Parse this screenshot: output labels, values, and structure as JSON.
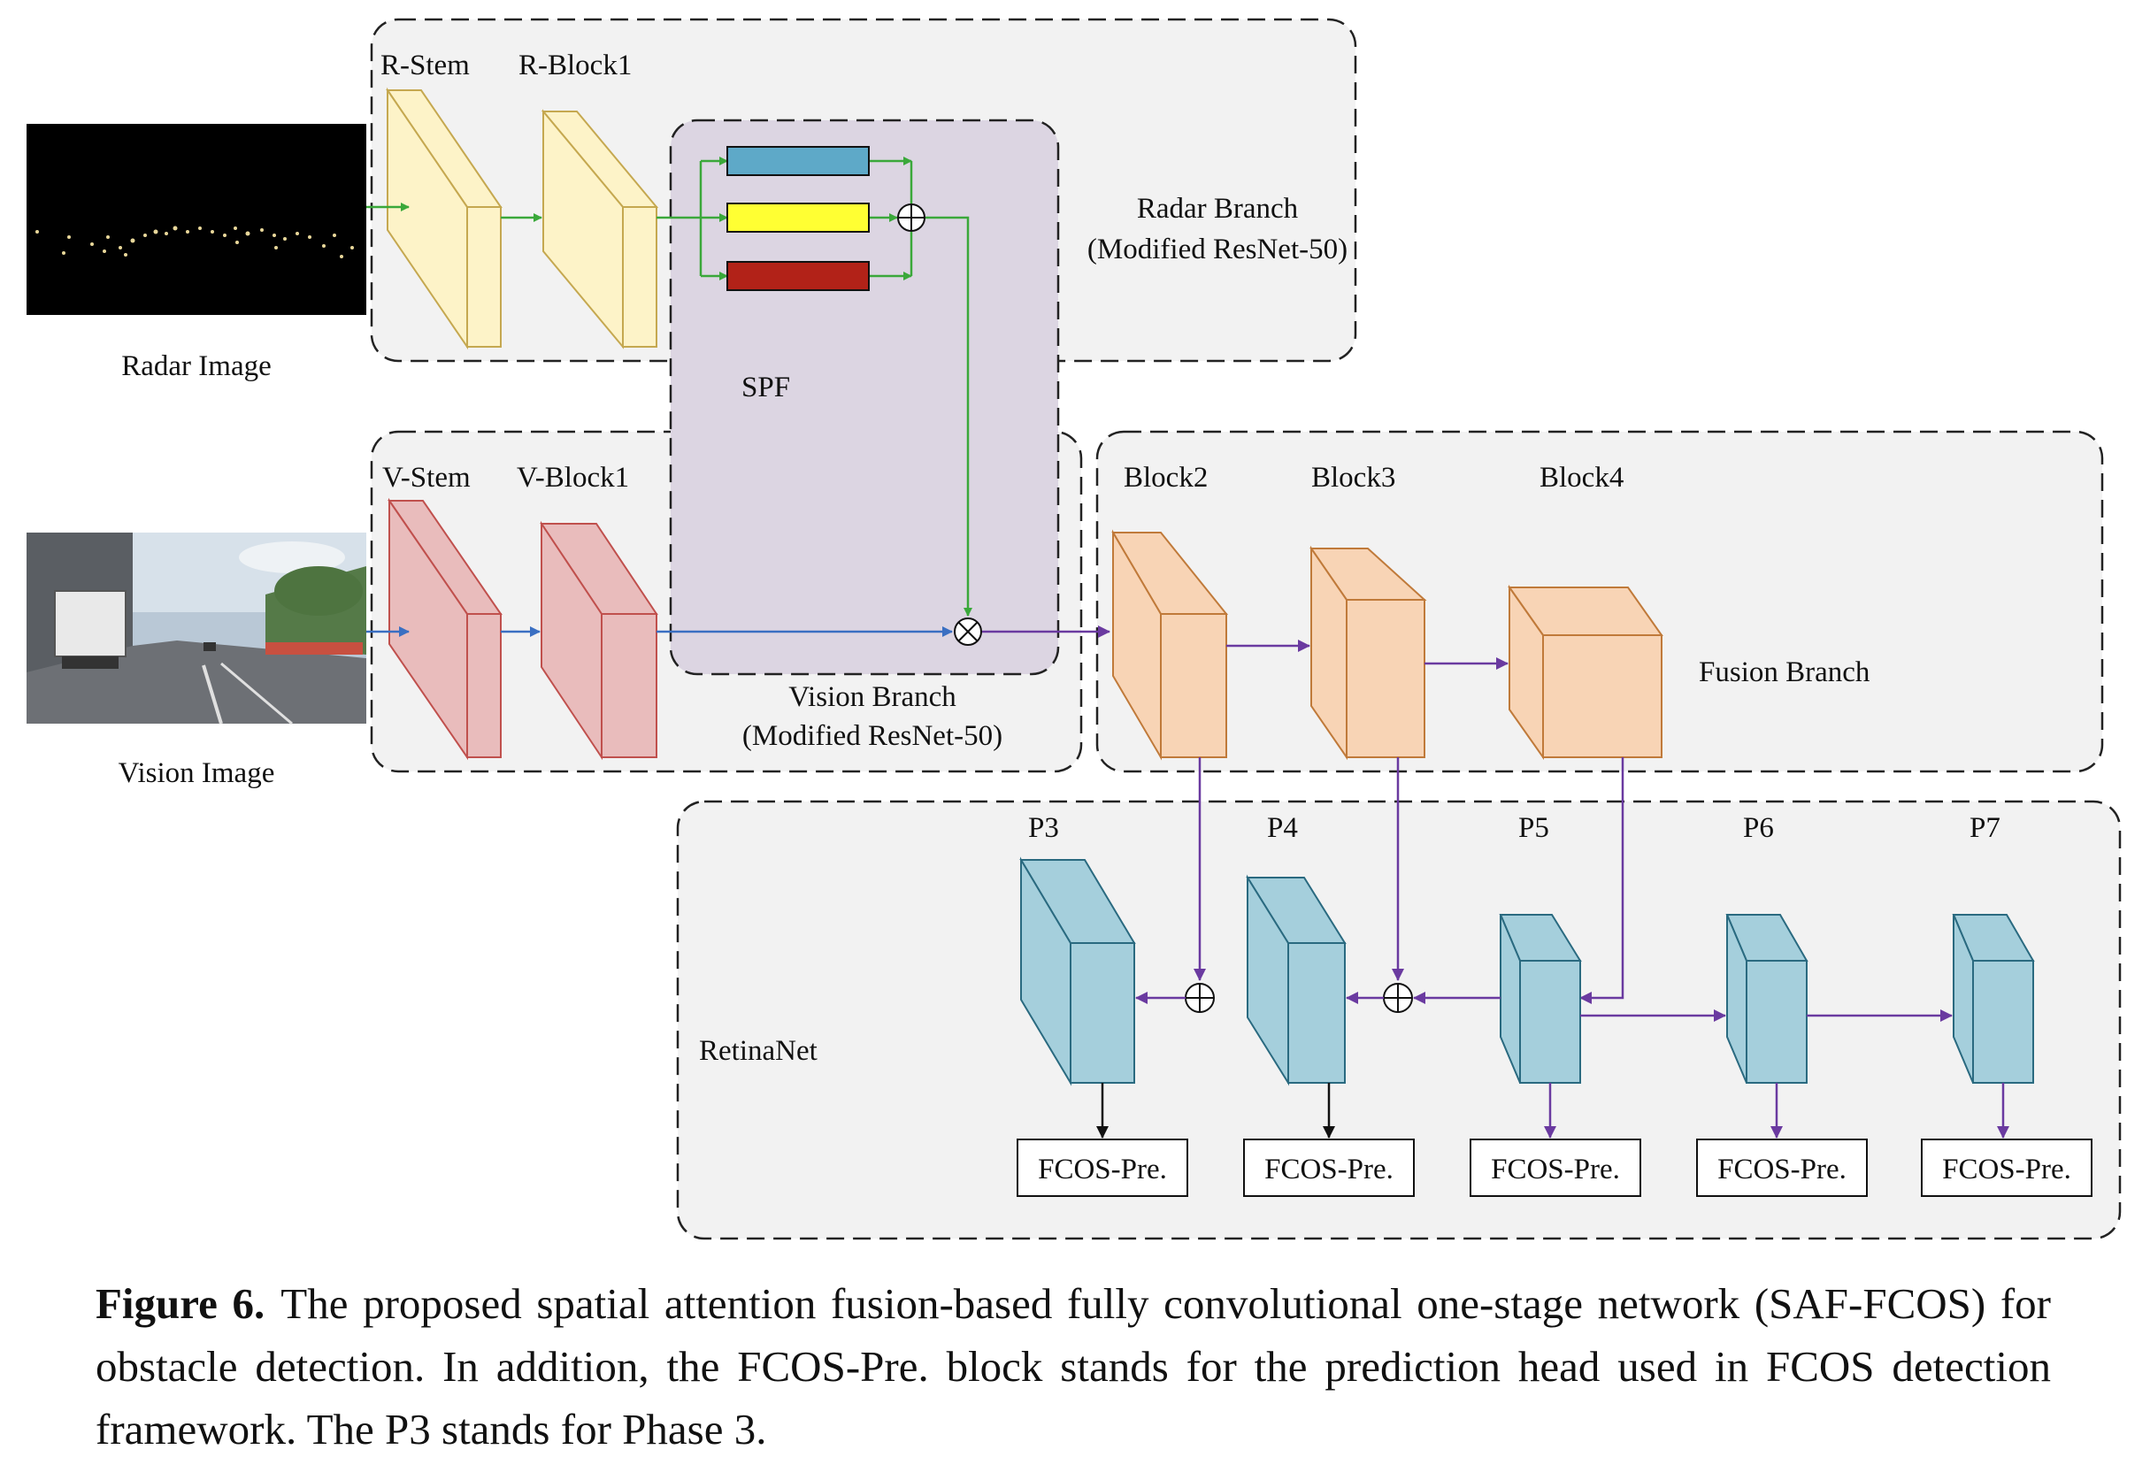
{
  "inputs": {
    "radar_label": "Radar Image",
    "vision_label": "Vision Image"
  },
  "radar_branch": {
    "stem": "R-Stem",
    "block1": "R-Block1",
    "title_line1": "Radar Branch",
    "title_line2": "(Modified ResNet-50)"
  },
  "vision_branch": {
    "stem": "V-Stem",
    "block1": "V-Block1",
    "title_line1": "Vision Branch",
    "title_line2": "(Modified ResNet-50)"
  },
  "spf": {
    "label": "SPF",
    "bar_colors": [
      "#5ea9c8",
      "#ffff33",
      "#b22218"
    ]
  },
  "fusion_branch": {
    "title": "Fusion Branch",
    "blocks": [
      "Block2",
      "Block3",
      "Block4"
    ]
  },
  "retinanet": {
    "title": "RetinaNet",
    "levels": [
      "P3",
      "P4",
      "P5",
      "P6",
      "P7"
    ],
    "head_label": "FCOS-Pre."
  },
  "colors": {
    "radar_block": "#fdf3c8",
    "vision_block": "#e9bcbc",
    "fusion_block": "#f8d4b5",
    "retina_block": "#a5cfdc",
    "spf_region": "#dcd5e2",
    "panel": "#f2f2f2",
    "arrow_green": "#3aa83a",
    "arrow_blue": "#3a6fc2",
    "arrow_purple": "#6a3aa0"
  },
  "caption": {
    "label": "Figure 6.",
    "text": "The proposed spatial attention fusion-based fully convolutional one-stage network (SAF-FCOS) for obstacle detection. In addition, the FCOS-Pre. block stands for the prediction head used in FCOS detection framework. The P3 stands for Phase 3."
  }
}
